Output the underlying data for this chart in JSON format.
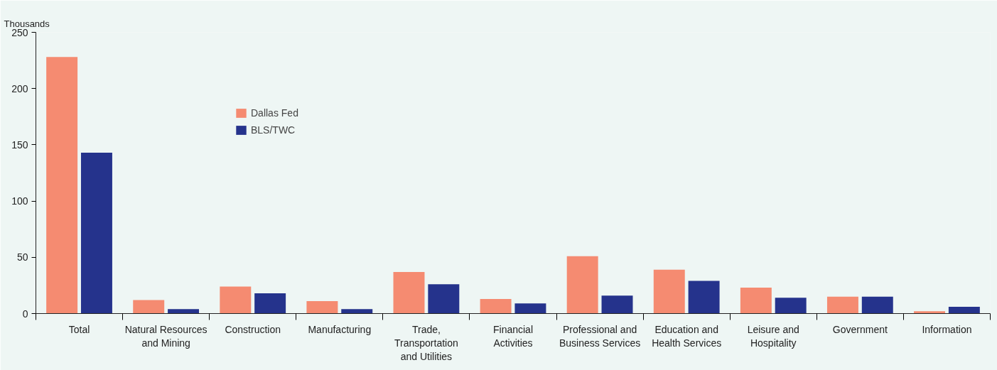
{
  "chart_data": {
    "type": "bar",
    "ylabel": "Thousands",
    "categories": [
      "Total",
      "Natural Resources and Mining",
      "Construction",
      "Manufacturing",
      "Trade, Transportation and Utilities",
      "Financial Activities",
      "Professional and Business Services",
      "Education and Health Services",
      "Leisure and Hospitality",
      "Government",
      "Information"
    ],
    "series": [
      {
        "name": "Dallas Fed",
        "color": "#f58b71",
        "values": [
          228,
          12,
          24,
          11,
          37,
          13,
          51,
          39,
          23,
          15,
          2
        ]
      },
      {
        "name": "BLS/TWC",
        "color": "#25338c",
        "values": [
          143,
          4,
          18,
          4,
          26,
          9,
          16,
          29,
          14,
          15,
          6
        ]
      }
    ],
    "ylim": [
      0,
      250
    ],
    "yticks": [
      0,
      50,
      100,
      150,
      200,
      250
    ],
    "grid": false,
    "legend": "top left"
  }
}
